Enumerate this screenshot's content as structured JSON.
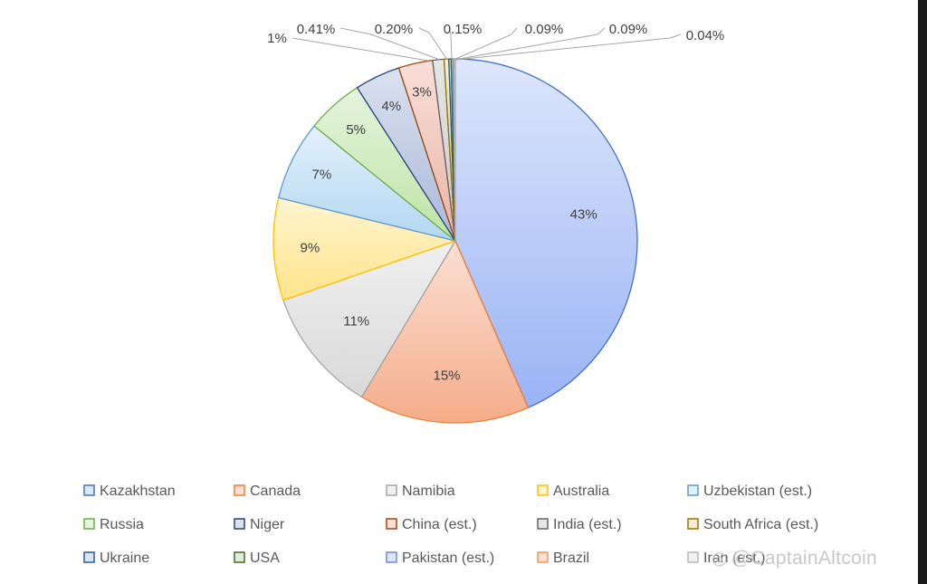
{
  "chart_data": {
    "type": "pie",
    "categories": [
      "Kazakhstan",
      "Canada",
      "Namibia",
      "Australia",
      "Uzbekistan (est.)",
      "Russia",
      "Niger",
      "China (est.)",
      "India (est.)",
      "South Africa (est.)",
      "Ukraine",
      "USA",
      "Pakistan (est.)",
      "Brazil",
      "Iran (est.)"
    ],
    "values": [
      43,
      15,
      11,
      9,
      7,
      5,
      4,
      3,
      1,
      0.41,
      0.2,
      0.15,
      0.09,
      0.09,
      0.04
    ],
    "labels": [
      "43%",
      "15%",
      "11%",
      "9%",
      "7%",
      "5%",
      "4%",
      "3%",
      "1%",
      "0.41%",
      "0.20%",
      "0.15%",
      "0.09%",
      "0.09%",
      "0.04%"
    ],
    "colors": [
      {
        "light": "#dde6fb",
        "dark": "#9ab3f5",
        "edge": "#4472c4"
      },
      {
        "light": "#fbdfd3",
        "dark": "#f5ad8a",
        "edge": "#ed7d31"
      },
      {
        "light": "#f0f0f0",
        "dark": "#d9d9d9",
        "edge": "#a5a5a5"
      },
      {
        "light": "#fff4cf",
        "dark": "#ffe48a",
        "edge": "#ffc000"
      },
      {
        "light": "#e4f1fb",
        "dark": "#b2d7f2",
        "edge": "#5b9bd5"
      },
      {
        "light": "#e6f4de",
        "dark": "#bde3a5",
        "edge": "#70ad47"
      },
      {
        "light": "#dbe1ef",
        "dark": "#a9b8d9",
        "edge": "#264478"
      },
      {
        "light": "#f8dfd9",
        "dark": "#eab4a4",
        "edge": "#9e480e"
      },
      {
        "light": "#e6e6e6",
        "dark": "#c9c9c9",
        "edge": "#636363"
      },
      {
        "light": "#f4ecd6",
        "dark": "#dbc68c",
        "edge": "#997300"
      },
      {
        "light": "#dde4f1",
        "dark": "#aebbd9",
        "edge": "#255e91"
      },
      {
        "light": "#e2ecdb",
        "dark": "#b4cc9f",
        "edge": "#43682b"
      },
      {
        "light": "#dde6fb",
        "dark": "#9ab3f5",
        "edge": "#698ed0"
      },
      {
        "light": "#fbdfd3",
        "dark": "#f5ad8a",
        "edge": "#f1975a"
      },
      {
        "light": "#f0f0f0",
        "dark": "#d9d9d9",
        "edge": "#b7b7b7"
      }
    ],
    "legend_position": "bottom"
  },
  "watermark": {
    "icon": "◎",
    "text": "@CaptainAltcoin"
  }
}
